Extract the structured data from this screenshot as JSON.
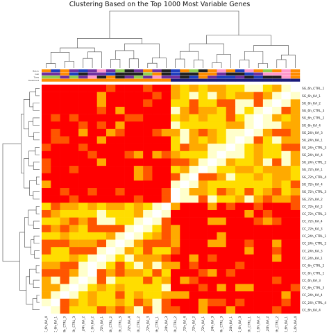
{
  "chart_data": {
    "type": "heatmap",
    "title": "Clustering Based on the Top 1000 Most Variable Genes",
    "samples": [
      "CC_6h_KA_4",
      "CC_6h_KA_1",
      "CC_24h_CTRL_3",
      "CC_6h_CTRL_3",
      "CC_24h_KA_2",
      "CC_6h_KA_2",
      "CC_72h_KA_1",
      "CC_24h_CTRL_2",
      "CC_72h_CTRL_3",
      "CC_72h_KA_4",
      "CC_72h_CTRL_2",
      "CC_72h_KA_3",
      "CC_6h_CTRL_1",
      "CC_24h_KA_3",
      "SG_72h_CTRL_2",
      "SG_72h_KA_4",
      "SG_72h_KA_2",
      "SG_72h_KA_1",
      "SG_24h_KA_3",
      "SG_24h_CTRL_3",
      "SG_24h_KA_1",
      "SG_6h_KA_3",
      "SG_6h_CTRL_1",
      "SG_6h_KA_2",
      "SG_24h_KA_2",
      "SG_6h_CTRL_2",
      "SG_6h_KA_1",
      "SG_6h_KA_4"
    ],
    "row_labels": [
      "SG_6h_CTRL_1",
      "SG_6h_KA_1",
      "SG_6h_KA_2",
      "SG_6h_CTRL_3",
      "SG_6h_CTRL_2",
      "SG_6h_KA_4",
      "SG_24h_KA_3",
      "SG_24h_KA_1",
      "SG_24h_CTRL_3",
      "SG_24h_KA_4",
      "SG_24h_CTRL_2",
      "SG_72h_KA_1",
      "SG_72h_CTRL_4",
      "SG_72h_KA_4",
      "SG_72h_CTRL_3",
      "SG_72h_KA_2",
      "CC_72h_KA_2",
      "CC_72h_CTRL_3",
      "CC_72h_KA_4",
      "CC_72h_KA_3",
      "CC_24h_CTRL_1",
      "CC_24h_CTRL_2",
      "CC_24h_KA_3",
      "CC_24h_KA_1",
      "CC_6h_CTRL_2",
      "CC_6h_CTRL_1",
      "CC_6h_KA_3",
      "CC_6h_CTRL_3",
      "CC_24h_KA_4",
      "CC_24h_CTRL_4",
      "CC_6h_KA_4"
    ],
    "annotation_tracks": [
      "Batch",
      "Cell",
      "Time",
      "Treatment"
    ],
    "row_groups": [
      16,
      15
    ],
    "col_groups": [
      14,
      14
    ],
    "diagonal_gaps": true,
    "color_scale": [
      "#ff0000",
      "#ff5500",
      "#ffaa00",
      "#ffdd00",
      "#ffffcc"
    ],
    "annotation_colors": [
      "#7030a0",
      "#1f3fbf",
      "#90d050",
      "#ff99cc",
      "#222222",
      "#ff8c00",
      "#00a0a0",
      "#1a1a7a"
    ]
  }
}
